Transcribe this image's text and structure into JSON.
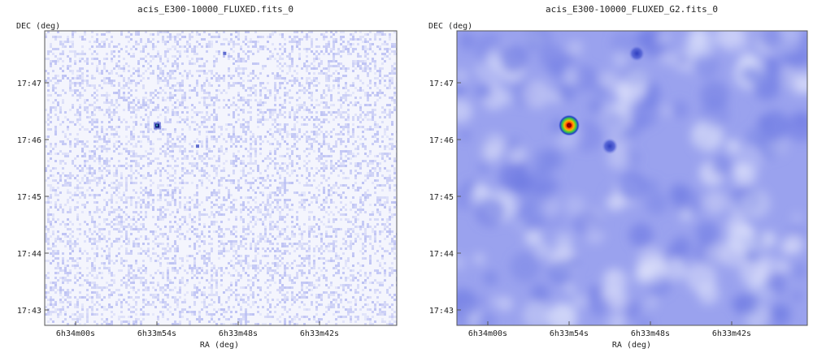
{
  "chart_data": [
    {
      "type": "heatmap",
      "title": "acis_E300-10000_FLUXED.fits_0",
      "xlabel": "RA (deg)",
      "ylabel": "DEC (deg)",
      "x_ticks": [
        "6h34m00s",
        "6h33m54s",
        "6h33m48s",
        "6h33m42s"
      ],
      "y_ticks": [
        "17:47",
        "17:46",
        "17:45",
        "17:44",
        "17:43"
      ],
      "style": "noisy",
      "colors": {
        "background": "#f4f5fd",
        "noise": "#7f88e8"
      },
      "sources": [
        {
          "label": "bright source",
          "ra": "6h33m54s",
          "dec": "17:46:15",
          "intensity": "high"
        },
        {
          "label": "faint source",
          "ra": "6h33m49s",
          "dec": "17:47:31",
          "intensity": "low"
        },
        {
          "label": "faint source",
          "ra": "6h33m51s",
          "dec": "17:45:53",
          "intensity": "low"
        }
      ]
    },
    {
      "type": "heatmap",
      "title": "acis_E300-10000_FLUXED_G2.fits_0",
      "xlabel": "RA (deg)",
      "ylabel": "DEC (deg)",
      "x_ticks": [
        "6h34m00s",
        "6h33m54s",
        "6h33m48s",
        "6h33m42s"
      ],
      "y_ticks": [
        "17:47",
        "17:46",
        "17:45",
        "17:44",
        "17:43"
      ],
      "style": "smoothed",
      "colors": {
        "background": "#9aa2ee",
        "peak": "#cc1a00"
      },
      "sources": [
        {
          "label": "bright source",
          "ra": "6h33m54s",
          "dec": "17:46:15",
          "intensity": "high"
        },
        {
          "label": "faint source",
          "ra": "6h33m49s",
          "dec": "17:47:31",
          "intensity": "low"
        },
        {
          "label": "faint source",
          "ra": "6h33m51s",
          "dec": "17:45:53",
          "intensity": "low"
        }
      ]
    }
  ]
}
